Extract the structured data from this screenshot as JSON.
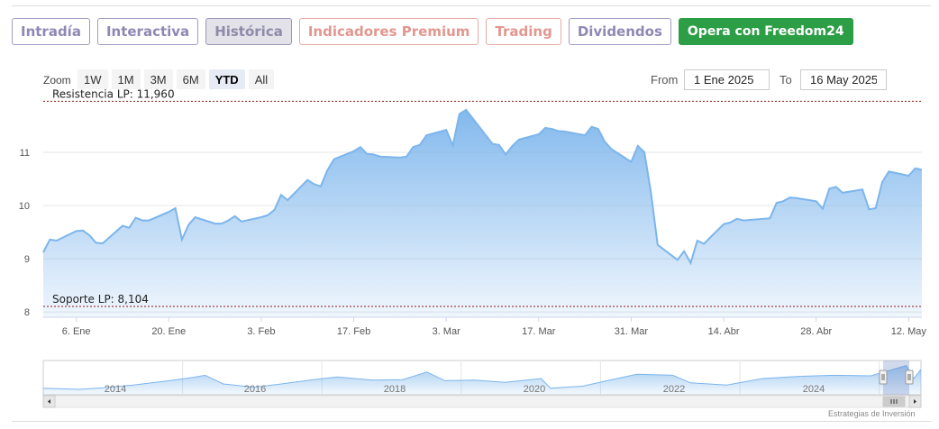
{
  "tabs": [
    {
      "label": "Intradía",
      "state": "default"
    },
    {
      "label": "Interactiva",
      "state": "default"
    },
    {
      "label": "Histórica",
      "state": "active"
    },
    {
      "label": "Indicadores Premium",
      "state": "premium"
    },
    {
      "label": "Trading",
      "state": "premium"
    },
    {
      "label": "Dividendos",
      "state": "default"
    },
    {
      "label": "Opera con Freedom24",
      "state": "cta"
    }
  ],
  "zoom": {
    "label": "Zoom",
    "buttons": [
      "1W",
      "1M",
      "3M",
      "6M",
      "YTD",
      "All"
    ],
    "selected": "YTD"
  },
  "range": {
    "from_label": "From",
    "from_value": "1 Ene 2025",
    "to_label": "To",
    "to_value": "16 May 2025"
  },
  "credits": "Estrategias de Inversión",
  "colors": {
    "line": "#7cb5ec",
    "fill_top": "#7cb5ec",
    "band_line": "#8a1a1a",
    "cta": "#2c9e46"
  },
  "chart_data": {
    "type": "area",
    "series": [
      {
        "values": [
          [
            "2025-01-01",
            9.12
          ],
          [
            "2025-01-02",
            9.36
          ],
          [
            "2025-01-03",
            9.34
          ],
          [
            "2025-01-06",
            9.52
          ],
          [
            "2025-01-07",
            9.53
          ],
          [
            "2025-01-08",
            9.44
          ],
          [
            "2025-01-09",
            9.3
          ],
          [
            "2025-01-10",
            9.29
          ],
          [
            "2025-01-13",
            9.62
          ],
          [
            "2025-01-14",
            9.58
          ],
          [
            "2025-01-15",
            9.77
          ],
          [
            "2025-01-16",
            9.72
          ],
          [
            "2025-01-17",
            9.72
          ],
          [
            "2025-01-20",
            9.88
          ],
          [
            "2025-01-21",
            9.95
          ],
          [
            "2025-01-22",
            9.36
          ],
          [
            "2025-01-23",
            9.64
          ],
          [
            "2025-01-24",
            9.78
          ],
          [
            "2025-01-27",
            9.66
          ],
          [
            "2025-01-28",
            9.66
          ],
          [
            "2025-01-29",
            9.72
          ],
          [
            "2025-01-30",
            9.8
          ],
          [
            "2025-01-31",
            9.7
          ],
          [
            "2025-02-03",
            9.78
          ],
          [
            "2025-02-04",
            9.82
          ],
          [
            "2025-02-05",
            9.92
          ],
          [
            "2025-02-06",
            10.2
          ],
          [
            "2025-02-07",
            10.1
          ],
          [
            "2025-02-10",
            10.48
          ],
          [
            "2025-02-11",
            10.4
          ],
          [
            "2025-02-12",
            10.36
          ],
          [
            "2025-02-13",
            10.66
          ],
          [
            "2025-02-14",
            10.87
          ],
          [
            "2025-02-17",
            11.02
          ],
          [
            "2025-02-18",
            11.1
          ],
          [
            "2025-02-19",
            10.97
          ],
          [
            "2025-02-20",
            10.96
          ],
          [
            "2025-02-21",
            10.92
          ],
          [
            "2025-02-24",
            10.9
          ],
          [
            "2025-02-25",
            10.92
          ],
          [
            "2025-02-26",
            11.1
          ],
          [
            "2025-02-27",
            11.14
          ],
          [
            "2025-02-28",
            11.32
          ],
          [
            "2025-03-03",
            11.42
          ],
          [
            "2025-03-04",
            11.13
          ],
          [
            "2025-03-05",
            11.72
          ],
          [
            "2025-03-06",
            11.8
          ],
          [
            "2025-03-07",
            11.64
          ],
          [
            "2025-03-10",
            11.16
          ],
          [
            "2025-03-11",
            11.14
          ],
          [
            "2025-03-12",
            10.96
          ],
          [
            "2025-03-13",
            11.12
          ],
          [
            "2025-03-14",
            11.24
          ],
          [
            "2025-03-17",
            11.34
          ],
          [
            "2025-03-18",
            11.46
          ],
          [
            "2025-03-19",
            11.44
          ],
          [
            "2025-03-20",
            11.4
          ],
          [
            "2025-03-21",
            11.39
          ],
          [
            "2025-03-24",
            11.32
          ],
          [
            "2025-03-25",
            11.48
          ],
          [
            "2025-03-26",
            11.44
          ],
          [
            "2025-03-27",
            11.2
          ],
          [
            "2025-03-28",
            11.06
          ],
          [
            "2025-03-31",
            10.82
          ],
          [
            "2025-04-01",
            11.12
          ],
          [
            "2025-04-02",
            11.0
          ],
          [
            "2025-04-03",
            10.24
          ],
          [
            "2025-04-04",
            9.26
          ],
          [
            "2025-04-07",
            8.98
          ],
          [
            "2025-04-08",
            9.14
          ],
          [
            "2025-04-09",
            8.92
          ],
          [
            "2025-04-10",
            9.34
          ],
          [
            "2025-04-11",
            9.28
          ],
          [
            "2025-04-14",
            9.65
          ],
          [
            "2025-04-15",
            9.68
          ],
          [
            "2025-04-16",
            9.75
          ],
          [
            "2025-04-17",
            9.72
          ],
          [
            "2025-04-21",
            9.76
          ],
          [
            "2025-04-22",
            10.05
          ],
          [
            "2025-04-23",
            10.08
          ],
          [
            "2025-04-24",
            10.15
          ],
          [
            "2025-04-25",
            10.14
          ],
          [
            "2025-04-28",
            10.08
          ],
          [
            "2025-04-29",
            9.94
          ],
          [
            "2025-04-30",
            10.32
          ],
          [
            "2025-05-01",
            10.35
          ],
          [
            "2025-05-02",
            10.24
          ],
          [
            "2025-05-05",
            10.3
          ],
          [
            "2025-05-06",
            9.93
          ],
          [
            "2025-05-07",
            9.95
          ],
          [
            "2025-05-08",
            10.44
          ],
          [
            "2025-05-09",
            10.64
          ],
          [
            "2025-05-12",
            10.56
          ],
          [
            "2025-05-13",
            10.7
          ],
          [
            "2025-05-14",
            10.67
          ]
        ]
      }
    ],
    "x_ticks": [
      {
        "date": "2025-01-06",
        "label": "6. Ene"
      },
      {
        "date": "2025-01-20",
        "label": "20. Ene"
      },
      {
        "date": "2025-02-03",
        "label": "3. Feb"
      },
      {
        "date": "2025-02-17",
        "label": "17. Feb"
      },
      {
        "date": "2025-03-03",
        "label": "3. Mar"
      },
      {
        "date": "2025-03-17",
        "label": "17. Mar"
      },
      {
        "date": "2025-03-31",
        "label": "31. Mar"
      },
      {
        "date": "2025-04-14",
        "label": "14. Abr"
      },
      {
        "date": "2025-04-28",
        "label": "28. Abr"
      },
      {
        "date": "2025-05-12",
        "label": "12. May"
      }
    ],
    "xlim": [
      "2025-01-01",
      "2025-05-14"
    ],
    "y_ticks": [
      8,
      9,
      10,
      11
    ],
    "ylim": [
      7.9,
      12.0
    ],
    "grid": true,
    "bands": [
      {
        "label": "Resistencia LP: 11,960",
        "value": 11.96
      },
      {
        "label": "Soporte LP: 8,104",
        "value": 8.104
      }
    ],
    "navigator": {
      "x_labels": [
        "2014",
        "2016",
        "2018",
        "2020",
        "2022",
        "2024"
      ],
      "values": [
        [
          "2013-03-01",
          7.2
        ],
        [
          "2013-09-01",
          7.0
        ],
        [
          "2014-01-01",
          7.3
        ],
        [
          "2014-06-01",
          7.8
        ],
        [
          "2014-12-01",
          8.6
        ],
        [
          "2015-04-01",
          9.2
        ],
        [
          "2015-06-01",
          9.6
        ],
        [
          "2015-09-01",
          8.0
        ],
        [
          "2016-02-01",
          7.4
        ],
        [
          "2016-06-01",
          7.9
        ],
        [
          "2016-12-01",
          8.8
        ],
        [
          "2017-04-01",
          9.3
        ],
        [
          "2017-10-01",
          8.7
        ],
        [
          "2018-03-01",
          8.8
        ],
        [
          "2018-07-01",
          10.2
        ],
        [
          "2018-10-01",
          8.6
        ],
        [
          "2019-03-01",
          8.7
        ],
        [
          "2019-08-01",
          8.3
        ],
        [
          "2020-02-01",
          9.0
        ],
        [
          "2020-03-20",
          7.2
        ],
        [
          "2020-09-01",
          7.6
        ],
        [
          "2021-01-01",
          8.6
        ],
        [
          "2021-06-01",
          9.8
        ],
        [
          "2021-12-01",
          9.6
        ],
        [
          "2022-03-01",
          8.2
        ],
        [
          "2022-09-01",
          7.8
        ],
        [
          "2023-03-01",
          9.0
        ],
        [
          "2023-09-01",
          9.4
        ],
        [
          "2024-03-01",
          9.6
        ],
        [
          "2024-09-01",
          9.5
        ],
        [
          "2025-03-01",
          11.4
        ],
        [
          "2025-04-08",
          9.0
        ],
        [
          "2025-05-14",
          10.7
        ]
      ]
    }
  }
}
